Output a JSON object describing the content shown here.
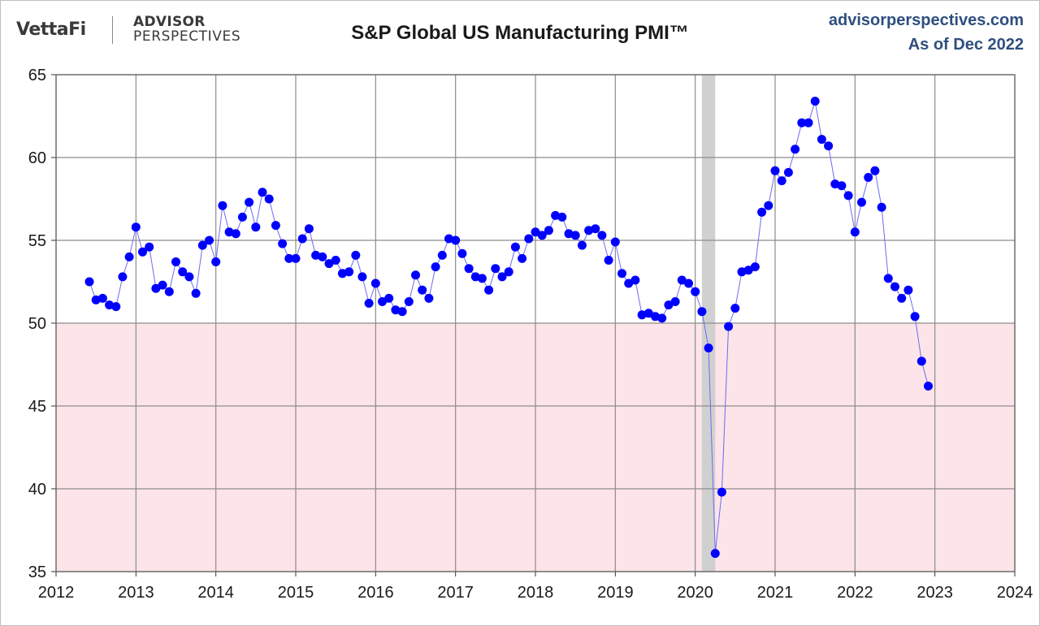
{
  "header": {
    "logo_primary": "VettaFi",
    "logo_secondary_top": "ADVISOR",
    "logo_secondary_bottom": "PERSPECTIVES",
    "site": "advisorperspectives.com",
    "as_of": "As of Dec 2022"
  },
  "colors": {
    "marker": "#0000ff",
    "line": "#6b6bf5",
    "contraction_band": "#fde4e8",
    "recession_band": "#d0d0d0",
    "grid": "#8c8c8c",
    "header_blue": "#2f4f7f"
  },
  "chart_data": {
    "type": "line",
    "title": "S&P Global US Manufacturing PMI™",
    "xlabel": "",
    "ylabel": "",
    "xlim": [
      2012,
      2024
    ],
    "ylim": [
      35,
      65
    ],
    "xticks": [
      "2012",
      "2013",
      "2014",
      "2015",
      "2016",
      "2017",
      "2018",
      "2019",
      "2020",
      "2021",
      "2022",
      "2023",
      "2024"
    ],
    "yticks": [
      "35",
      "40",
      "45",
      "50",
      "55",
      "60",
      "65"
    ],
    "grid": true,
    "contraction_threshold": 50,
    "recession": {
      "start": "2020-02",
      "end": "2020-04"
    },
    "series": [
      {
        "start": "2012-06",
        "frequency": "monthly",
        "values": [
          52.5,
          51.4,
          51.5,
          51.1,
          51.0,
          52.8,
          54.0,
          55.8,
          54.3,
          54.6,
          52.1,
          52.3,
          51.9,
          53.7,
          53.1,
          52.8,
          51.8,
          54.7,
          55.0,
          53.7,
          57.1,
          55.5,
          55.4,
          56.4,
          57.3,
          55.8,
          57.9,
          57.5,
          55.9,
          54.8,
          53.9,
          53.9,
          55.1,
          55.7,
          54.1,
          54.0,
          53.6,
          53.8,
          53.0,
          53.1,
          54.1,
          52.8,
          51.2,
          52.4,
          51.3,
          51.5,
          50.8,
          50.7,
          51.3,
          52.9,
          52.0,
          51.5,
          53.4,
          54.1,
          55.1,
          55.0,
          54.2,
          53.3,
          52.8,
          52.7,
          52.0,
          53.3,
          52.8,
          53.1,
          54.6,
          53.9,
          55.1,
          55.5,
          55.3,
          55.6,
          56.5,
          56.4,
          55.4,
          55.3,
          54.7,
          55.6,
          55.7,
          55.3,
          53.8,
          54.9,
          53.0,
          52.4,
          52.6,
          50.5,
          50.6,
          50.4,
          50.3,
          51.1,
          51.3,
          52.6,
          52.4,
          51.9,
          50.7,
          48.5,
          36.1,
          39.8,
          49.8,
          50.9,
          53.1,
          53.2,
          53.4,
          56.7,
          57.1,
          59.2,
          58.6,
          59.1,
          60.5,
          62.1,
          62.1,
          63.4,
          61.1,
          60.7,
          58.4,
          58.3,
          57.7,
          55.5,
          57.3,
          58.8,
          59.2,
          57.0,
          52.7,
          52.2,
          51.5,
          52.0,
          50.4,
          47.7,
          46.2
        ]
      }
    ]
  }
}
